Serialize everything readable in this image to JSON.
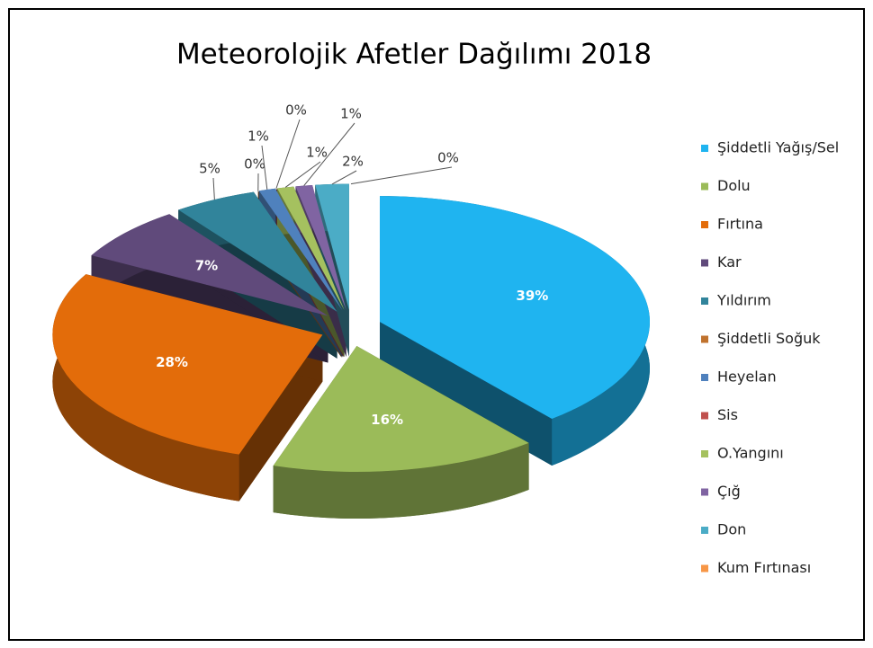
{
  "chart_data": {
    "type": "pie",
    "title": "Meteorolojik Afetler Dağılımı 2018",
    "categories": [
      "Şiddetli Yağış/Sel",
      "Dolu",
      "Fırtına",
      "Kar",
      "Yıldırım",
      "Şiddetli Soğuk",
      "Heyelan",
      "Sis",
      "O.Yangını",
      "Çığ",
      "Don",
      "Kum Fırtınası"
    ],
    "values": [
      39,
      16,
      28,
      7,
      5,
      0,
      1,
      0,
      1,
      1,
      2,
      0
    ],
    "value_labels": [
      "39%",
      "16%",
      "28%",
      "7%",
      "5%",
      "0%",
      "1%",
      "0%",
      "1%",
      "1%",
      "2%",
      "0%"
    ],
    "colors": [
      "#1fb4f0",
      "#9bbb59",
      "#e36c0a",
      "#604a7b",
      "#31849b",
      "#c0722d",
      "#4f81bd",
      "#c0504d",
      "#a5c15f",
      "#8064a2",
      "#4bacc6",
      "#f79646"
    ],
    "legend": "right"
  }
}
